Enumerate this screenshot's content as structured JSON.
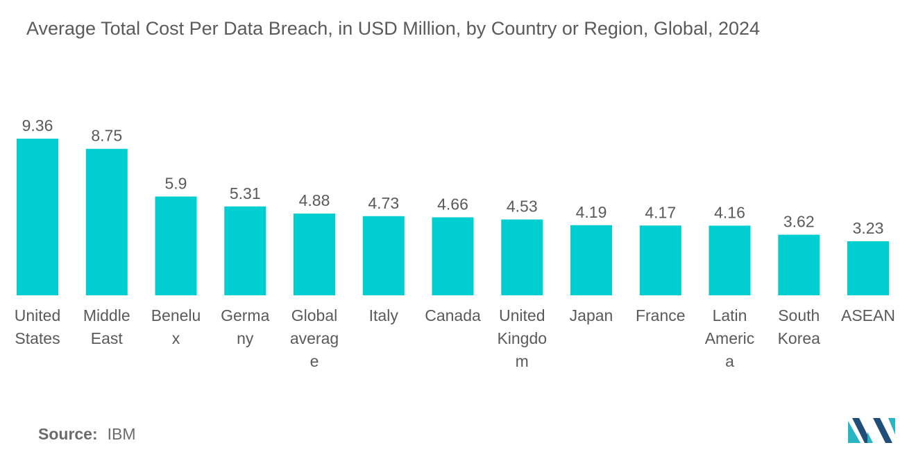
{
  "title": "Average Total Cost Per Data Breach, in USD Million, by Country or Region, Global, 2024",
  "source": {
    "label": "Source:",
    "value": "IBM"
  },
  "colors": {
    "bar": "#00ced1",
    "text": "#5a5a5a",
    "logo_dark": "#1f4e79",
    "logo_light": "#28b5c4"
  },
  "chart_data": {
    "type": "bar",
    "title": "Average Total Cost Per Data Breach, in USD Million, by Country or Region, Global, 2024",
    "xlabel": "",
    "ylabel": "",
    "ylim": [
      0,
      10
    ],
    "grid": false,
    "categories": [
      [
        "United",
        "States"
      ],
      [
        "Middle",
        "East"
      ],
      [
        "Benelu",
        "x"
      ],
      [
        "Germa",
        "ny"
      ],
      [
        "Global",
        "averag",
        "e"
      ],
      [
        "Italy"
      ],
      [
        "Canada"
      ],
      [
        "United",
        "Kingdo",
        "m"
      ],
      [
        "Japan"
      ],
      [
        "France"
      ],
      [
        "Latin",
        "Americ",
        "a"
      ],
      [
        "South",
        "Korea"
      ],
      [
        "ASEAN"
      ]
    ],
    "values": [
      9.36,
      8.75,
      5.9,
      5.31,
      4.88,
      4.73,
      4.66,
      4.53,
      4.19,
      4.17,
      4.16,
      3.62,
      3.23
    ],
    "value_labels": [
      "9.36",
      "8.75",
      "5.9",
      "5.31",
      "4.88",
      "4.73",
      "4.66",
      "4.53",
      "4.19",
      "4.17",
      "4.16",
      "3.62",
      "3.23"
    ]
  }
}
